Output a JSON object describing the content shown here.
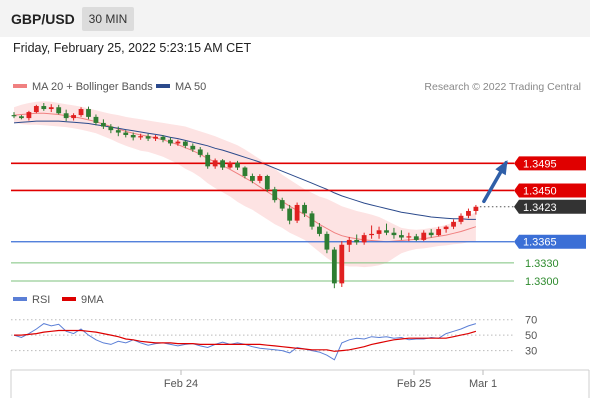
{
  "header": {
    "symbol": "GBP/USD",
    "interval": "30 MIN",
    "datetime": "Friday, February 25, 2022 5:23:15 AM CET"
  },
  "legend": {
    "ma20": {
      "label": "MA 20 + Bollinger Bands",
      "color": "#f08080"
    },
    "ma50": {
      "label": "MA 50",
      "color": "#2b4a8c"
    },
    "rsi": {
      "label": "RSI",
      "color": "#5b7fd6"
    },
    "rsi_ma": {
      "label": "9MA",
      "color": "#dd0000"
    },
    "credit": "Research © 2022 Trading Central"
  },
  "levels": [
    {
      "label": "1.3495",
      "value": 1.3495,
      "color": "#e00000",
      "kind": "resistance"
    },
    {
      "label": "1.3450",
      "value": 1.345,
      "color": "#e00000",
      "kind": "resistance"
    },
    {
      "label": "1.3423",
      "value": 1.3423,
      "color": "#333333",
      "kind": "last"
    },
    {
      "label": "1.3365",
      "value": 1.3365,
      "color": "#3b6fd6",
      "kind": "pivot"
    },
    {
      "label": "1.3330",
      "value": 1.333,
      "color": "#7cc27c",
      "kind": "support"
    },
    {
      "label": "1.3300",
      "value": 1.33,
      "color": "#7cc27c",
      "kind": "support"
    }
  ],
  "x_ticks": [
    "Feb 24",
    "Feb 25",
    "Mar 1"
  ],
  "rsi_ticks": [
    "70",
    "50",
    "30"
  ],
  "chart_data": {
    "type": "candlestick",
    "title": "GBP/USD",
    "interval": "30 MIN",
    "ylim": [
      1.3285,
      1.36
    ],
    "candles": [
      [
        1.3575,
        1.358,
        1.357,
        1.3573
      ],
      [
        1.3573,
        1.3575,
        1.3568,
        1.357
      ],
      [
        1.357,
        1.3582,
        1.3566,
        1.358
      ],
      [
        1.358,
        1.3592,
        1.3578,
        1.359
      ],
      [
        1.359,
        1.3595,
        1.3582,
        1.3585
      ],
      [
        1.3585,
        1.3593,
        1.358,
        1.3588
      ],
      [
        1.3588,
        1.3592,
        1.3576,
        1.3578
      ],
      [
        1.3578,
        1.3584,
        1.3565,
        1.357
      ],
      [
        1.357,
        1.3578,
        1.3566,
        1.3575
      ],
      [
        1.3575,
        1.3588,
        1.3572,
        1.3585
      ],
      [
        1.3585,
        1.3589,
        1.3568,
        1.3572
      ],
      [
        1.3572,
        1.3576,
        1.3558,
        1.3562
      ],
      [
        1.3562,
        1.3568,
        1.3552,
        1.3556
      ],
      [
        1.3556,
        1.356,
        1.3545,
        1.355
      ],
      [
        1.355,
        1.3556,
        1.354,
        1.3546
      ],
      [
        1.3546,
        1.355,
        1.3538,
        1.3542
      ],
      [
        1.3542,
        1.3546,
        1.3533,
        1.3538
      ],
      [
        1.3538,
        1.3544,
        1.3534,
        1.354
      ],
      [
        1.354,
        1.3544,
        1.3532,
        1.3536
      ],
      [
        1.3536,
        1.3542,
        1.3532,
        1.3539
      ],
      [
        1.3539,
        1.3542,
        1.353,
        1.3534
      ],
      [
        1.3534,
        1.3538,
        1.3524,
        1.3528
      ],
      [
        1.3528,
        1.3534,
        1.3524,
        1.3531
      ],
      [
        1.3531,
        1.3533,
        1.352,
        1.3524
      ],
      [
        1.3524,
        1.3528,
        1.3514,
        1.3518
      ],
      [
        1.3518,
        1.3522,
        1.3505,
        1.3509
      ],
      [
        1.3509,
        1.3513,
        1.3486,
        1.349
      ],
      [
        1.349,
        1.3503,
        1.3486,
        1.35
      ],
      [
        1.35,
        1.3502,
        1.3484,
        1.3488
      ],
      [
        1.3488,
        1.3499,
        1.3486,
        1.3496
      ],
      [
        1.3496,
        1.3499,
        1.3484,
        1.3488
      ],
      [
        1.3488,
        1.349,
        1.347,
        1.3474
      ],
      [
        1.3474,
        1.3478,
        1.3462,
        1.3466
      ],
      [
        1.3466,
        1.3477,
        1.3462,
        1.3474
      ],
      [
        1.3474,
        1.3476,
        1.3448,
        1.3452
      ],
      [
        1.3452,
        1.3456,
        1.343,
        1.3434
      ],
      [
        1.3434,
        1.3438,
        1.3416,
        1.342
      ],
      [
        1.342,
        1.3426,
        1.3394,
        1.34
      ],
      [
        1.34,
        1.343,
        1.3396,
        1.3426
      ],
      [
        1.3426,
        1.343,
        1.3406,
        1.3412
      ],
      [
        1.3412,
        1.3416,
        1.3385,
        1.339
      ],
      [
        1.339,
        1.3396,
        1.3374,
        1.3378
      ],
      [
        1.3378,
        1.3382,
        1.3346,
        1.3352
      ],
      [
        1.3352,
        1.3356,
        1.3288,
        1.3296
      ],
      [
        1.3296,
        1.3366,
        1.329,
        1.336
      ],
      [
        1.336,
        1.3373,
        1.3348,
        1.3368
      ],
      [
        1.3368,
        1.3377,
        1.336,
        1.3364
      ],
      [
        1.3364,
        1.338,
        1.336,
        1.3376
      ],
      [
        1.3376,
        1.3392,
        1.337,
        1.3378
      ],
      [
        1.3378,
        1.339,
        1.337,
        1.3384
      ],
      [
        1.3384,
        1.3395,
        1.3376,
        1.338
      ],
      [
        1.338,
        1.3388,
        1.337,
        1.3376
      ],
      [
        1.3376,
        1.3384,
        1.3368,
        1.3372
      ],
      [
        1.3372,
        1.338,
        1.3366,
        1.3374
      ],
      [
        1.3374,
        1.3378,
        1.3366,
        1.3368
      ],
      [
        1.3368,
        1.3384,
        1.3366,
        1.338
      ],
      [
        1.338,
        1.3386,
        1.3372,
        1.3376
      ],
      [
        1.3376,
        1.339,
        1.3374,
        1.3386
      ],
      [
        1.3386,
        1.3392,
        1.338,
        1.339
      ],
      [
        1.339,
        1.3402,
        1.3386,
        1.3398
      ],
      [
        1.3398,
        1.3412,
        1.3394,
        1.3408
      ],
      [
        1.3408,
        1.342,
        1.3404,
        1.3416
      ],
      [
        1.3416,
        1.3426,
        1.341,
        1.3423
      ]
    ],
    "ma50": [
      1.3562,
      1.3563,
      1.3564,
      1.3565,
      1.3565,
      1.3565,
      1.3565,
      1.3564,
      1.3563,
      1.3562,
      1.3561,
      1.3559,
      1.3557,
      1.3555,
      1.3553,
      1.3551,
      1.3549,
      1.3547,
      1.3545,
      1.3543,
      1.3541,
      1.3538,
      1.3536,
      1.3533,
      1.353,
      1.3527,
      1.3524,
      1.352,
      1.3517,
      1.3513,
      1.3509,
      1.3505,
      1.3501,
      1.3497,
      1.3492,
      1.3487,
      1.3482,
      1.3477,
      1.3472,
      1.3467,
      1.3462,
      1.3457,
      1.3452,
      1.3446,
      1.3441,
      1.3437,
      1.3433,
      1.3429,
      1.3426,
      1.3423,
      1.342,
      1.3417,
      1.3414,
      1.3412,
      1.341,
      1.3408,
      1.3406,
      1.3405,
      1.3404,
      1.3403,
      1.3403,
      1.3402,
      1.3402
    ],
    "bb_mid": [
      1.3575,
      1.3576,
      1.3577,
      1.3578,
      1.3578,
      1.3577,
      1.3576,
      1.3574,
      1.3572,
      1.357,
      1.3567,
      1.3564,
      1.356,
      1.3556,
      1.3552,
      1.3548,
      1.3545,
      1.3542,
      1.354,
      1.3537,
      1.3534,
      1.353,
      1.3526,
      1.3521,
      1.3516,
      1.351,
      1.3503,
      1.3497,
      1.3491,
      1.3485,
      1.3478,
      1.3471,
      1.3464,
      1.3456,
      1.3448,
      1.344,
      1.3432,
      1.3424,
      1.3417,
      1.341,
      1.3402,
      1.3394,
      1.3387,
      1.338,
      1.3375,
      1.3372,
      1.337,
      1.3368,
      1.3367,
      1.3366,
      1.3365,
      1.3366,
      1.3367,
      1.3368,
      1.3369,
      1.337,
      1.3372,
      1.3374,
      1.3376,
      1.3379,
      1.3382,
      1.3386,
      1.339
    ],
    "bb_upper": [
      1.3588,
      1.3592,
      1.3595,
      1.3597,
      1.3598,
      1.3597,
      1.3595,
      1.3593,
      1.3591,
      1.3589,
      1.3586,
      1.3583,
      1.358,
      1.3577,
      1.3575,
      1.3572,
      1.357,
      1.3568,
      1.3566,
      1.3564,
      1.3562,
      1.356,
      1.3558,
      1.3556,
      1.3552,
      1.3548,
      1.3544,
      1.354,
      1.3535,
      1.353,
      1.3525,
      1.3518,
      1.351,
      1.3502,
      1.3494,
      1.3486,
      1.3476,
      1.3468,
      1.346,
      1.3452,
      1.3446,
      1.344,
      1.3436,
      1.343,
      1.3424,
      1.342,
      1.3416,
      1.3413,
      1.341,
      1.3406,
      1.34,
      1.3394,
      1.3388,
      1.3386,
      1.3385,
      1.3386,
      1.3388,
      1.339,
      1.3393,
      1.3397,
      1.3402,
      1.3408,
      1.3414
    ],
    "bb_lower": [
      1.3562,
      1.356,
      1.3559,
      1.3559,
      1.3558,
      1.3557,
      1.3556,
      1.3555,
      1.3553,
      1.3551,
      1.3548,
      1.3545,
      1.354,
      1.3535,
      1.3529,
      1.3524,
      1.352,
      1.3516,
      1.3514,
      1.351,
      1.3506,
      1.35,
      1.3494,
      1.3486,
      1.348,
      1.3472,
      1.3462,
      1.3454,
      1.3447,
      1.344,
      1.3431,
      1.3424,
      1.3418,
      1.341,
      1.3402,
      1.3394,
      1.3388,
      1.338,
      1.3374,
      1.3368,
      1.3358,
      1.3348,
      1.3338,
      1.333,
      1.3326,
      1.3324,
      1.3324,
      1.3323,
      1.3324,
      1.3326,
      1.333,
      1.3338,
      1.3346,
      1.335,
      1.3353,
      1.3354,
      1.3356,
      1.3358,
      1.3359,
      1.3361,
      1.3362,
      1.3364,
      1.3366
    ],
    "rsi": {
      "ylim": [
        10,
        80
      ],
      "levels": [
        70,
        50,
        30
      ],
      "values": [
        50,
        47,
        52,
        58,
        65,
        62,
        64,
        55,
        52,
        58,
        50,
        44,
        40,
        38,
        42,
        40,
        44,
        40,
        37,
        39,
        40,
        38,
        36,
        38,
        39,
        36,
        34,
        38,
        41,
        38,
        40,
        38,
        35,
        33,
        32,
        31,
        30,
        27,
        34,
        32,
        30,
        28,
        24,
        18,
        40,
        44,
        46,
        45,
        48,
        47,
        48,
        46,
        47,
        44,
        45,
        45,
        47,
        46,
        52,
        55,
        58,
        62,
        65
      ],
      "ma9": [
        50,
        50,
        51,
        52,
        54,
        55,
        56,
        56,
        56,
        56,
        55,
        54,
        52,
        50,
        48,
        45,
        44,
        42,
        41,
        40,
        40,
        40,
        39,
        39,
        39,
        38,
        38,
        38,
        38,
        38,
        38,
        38,
        38,
        38,
        37,
        36,
        35,
        34,
        33,
        32,
        31,
        31,
        31,
        29,
        30,
        31,
        33,
        35,
        38,
        40,
        42,
        44,
        45,
        46,
        46,
        46,
        46,
        46,
        46,
        48,
        50,
        52,
        55
      ]
    }
  }
}
